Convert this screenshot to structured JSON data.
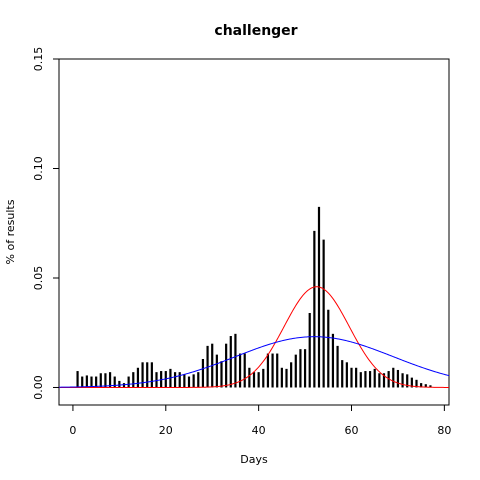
{
  "chart_data": {
    "type": "bar",
    "title": "challenger",
    "xlabel": "Days",
    "ylabel": "% of results",
    "xlim": [
      -3,
      81
    ],
    "ylim": [
      -0.008,
      0.15
    ],
    "xticks": [
      0,
      20,
      40,
      60,
      80
    ],
    "yticks": [
      0.0,
      0.05,
      0.1,
      0.15
    ],
    "ytick_labels": [
      "0.00",
      "0.05",
      "0.10",
      "0.15"
    ],
    "grid": false,
    "x": [
      1,
      2,
      3,
      4,
      5,
      6,
      7,
      8,
      9,
      10,
      11,
      12,
      13,
      14,
      15,
      16,
      17,
      18,
      19,
      20,
      21,
      22,
      23,
      24,
      25,
      26,
      27,
      28,
      29,
      30,
      31,
      32,
      33,
      34,
      35,
      36,
      37,
      38,
      39,
      40,
      41,
      42,
      43,
      44,
      45,
      46,
      47,
      48,
      49,
      50,
      51,
      52,
      53,
      54,
      55,
      56,
      57,
      58,
      59,
      60,
      61,
      62,
      63,
      64,
      65,
      66,
      67,
      68,
      69,
      70,
      71,
      72,
      73,
      74,
      75,
      76,
      77
    ],
    "values": [
      0.0075,
      0.005,
      0.0055,
      0.005,
      0.005,
      0.0065,
      0.0065,
      0.007,
      0.005,
      0.003,
      0.002,
      0.005,
      0.007,
      0.009,
      0.0115,
      0.0115,
      0.0115,
      0.007,
      0.0075,
      0.0075,
      0.0085,
      0.007,
      0.007,
      0.006,
      0.005,
      0.006,
      0.007,
      0.013,
      0.019,
      0.02,
      0.015,
      0.012,
      0.02,
      0.0235,
      0.0245,
      0.0155,
      0.0155,
      0.009,
      0.007,
      0.007,
      0.0085,
      0.0155,
      0.0155,
      0.0155,
      0.009,
      0.0085,
      0.0115,
      0.015,
      0.0175,
      0.0175,
      0.034,
      0.0715,
      0.0825,
      0.0675,
      0.0355,
      0.0245,
      0.019,
      0.0125,
      0.0115,
      0.009,
      0.009,
      0.007,
      0.0075,
      0.0075,
      0.0085,
      0.0065,
      0.0065,
      0.0075,
      0.009,
      0.008,
      0.0065,
      0.006,
      0.0045,
      0.0035,
      0.002,
      0.0015,
      0.001
    ],
    "series": [
      {
        "type": "line",
        "color": "#ff0000",
        "mean": 52.5,
        "sd": 7.0,
        "peak": 0.046
      },
      {
        "type": "line",
        "color": "#0000ff",
        "mean": 52.0,
        "sd": 17.0,
        "peak": 0.0232
      }
    ],
    "colors": {
      "bars": "#000000",
      "frame": "#000000"
    }
  }
}
